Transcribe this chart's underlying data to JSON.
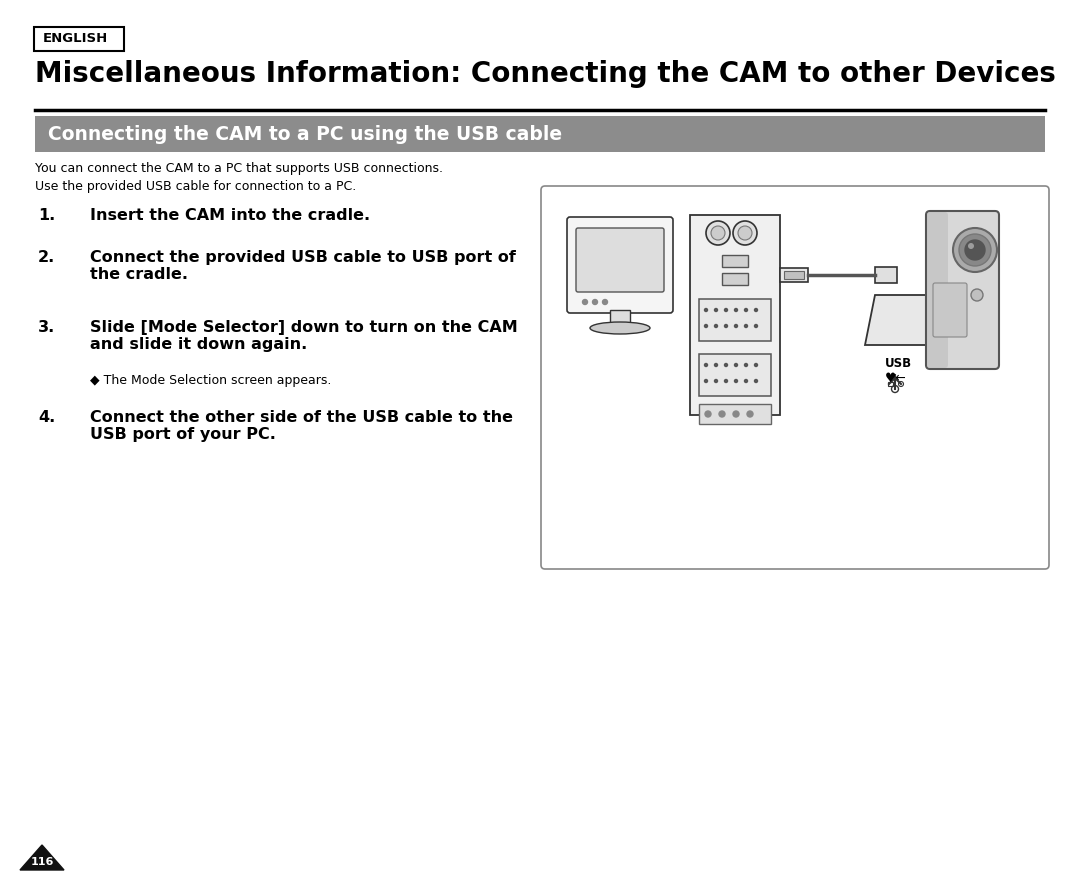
{
  "bg_color": "#ffffff",
  "text_color": "#000000",
  "english_label": "ENGLISH",
  "main_title": "Miscellaneous Information: Connecting the CAM to other Devices",
  "section_title": "Connecting the CAM to a PC using the USB cable",
  "section_bg_color": "#8c8c8c",
  "section_text_color": "#ffffff",
  "intro_lines": [
    "You can connect the CAM to a PC that supports USB connections.",
    "Use the provided USB cable for connection to a PC."
  ],
  "steps": [
    {
      "num": "1.",
      "bold": "Insert the CAM into the cradle.",
      "normal": ""
    },
    {
      "num": "2.",
      "bold": "Connect the provided USB cable to USB port of\nthe cradle.",
      "normal": ""
    },
    {
      "num": "3.",
      "bold": "Slide [Mode Selector] down to turn on the CAM\nand slide it down again.",
      "normal": "◆ The Mode Selection screen appears."
    },
    {
      "num": "4.",
      "bold": "Connect the other side of the USB cable to the\nUSB port of your PC.",
      "normal": ""
    }
  ],
  "page_number": "116",
  "divider_color": "#000000",
  "img_border_color": "#888888",
  "outline_color": "#333333",
  "fill_light": "#e8e8e8",
  "fill_mid": "#cccccc",
  "fill_dark": "#aaaaaa"
}
